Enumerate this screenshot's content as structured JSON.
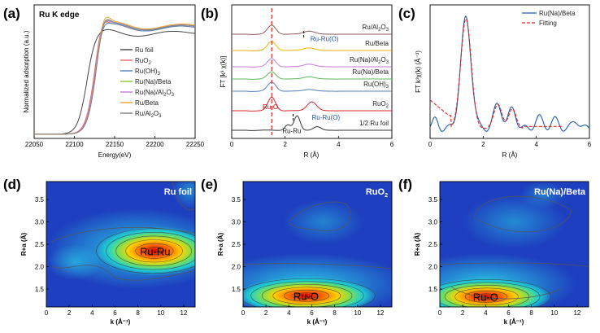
{
  "panels": [
    {
      "id": "a",
      "label": "(a)",
      "chart_data": {
        "type": "line",
        "title": "Ru K edge",
        "xlabel": "Energy(eV)",
        "ylabel": "Normalized adsorption (a.u.)",
        "xlim": [
          22050,
          22250
        ],
        "xticks": [
          22050,
          22100,
          22150,
          22200,
          22250
        ],
        "legend_position": "right",
        "series": [
          {
            "name": "Ru foil",
            "color": "#444444",
            "edge": 22115,
            "peak": 0.96,
            "post": 0.97
          },
          {
            "name": "RuO2",
            "color": "#e36c6c",
            "edge": 22124,
            "peak": 1.12,
            "post": 1.02
          },
          {
            "name": "Ru(OH)3",
            "color": "#4f81bd",
            "edge": 22125,
            "peak": 1.1,
            "post": 1.02
          },
          {
            "name": "Ru(Na)/Beta",
            "color": "#8cc63f",
            "edge": 22125,
            "peak": 1.14,
            "post": 1.03
          },
          {
            "name": "Ru(Na)/Al2O3",
            "color": "#c27bd2",
            "edge": 22125,
            "peak": 1.13,
            "post": 1.03
          },
          {
            "name": "Ru/Beta",
            "color": "#f0a030",
            "edge": 22126,
            "peak": 1.18,
            "post": 1.04
          },
          {
            "name": "Ru/Al2O3",
            "color": "#7f7f7f",
            "edge": 22126,
            "peak": 1.15,
            "post": 1.03
          }
        ],
        "legend": [
          {
            "main": "Ru foil",
            "sub": ""
          },
          {
            "main": "RuO",
            "sub": "2"
          },
          {
            "main": "Ru(OH)",
            "sub": "3"
          },
          {
            "main": "Ru(Na)/Beta",
            "sub": ""
          },
          {
            "main": "Ru(Na)/Al",
            "sub": "2",
            "tail": "O",
            "sub2": "3"
          },
          {
            "main": "Ru/Beta",
            "sub": ""
          },
          {
            "main": "Ru/Al",
            "sub": "2",
            "tail": "O",
            "sub2": "3"
          }
        ]
      }
    },
    {
      "id": "b",
      "label": "(b)",
      "chart_data": {
        "type": "line",
        "xlabel": "R (Å)",
        "ylabel": "FT [k³ χ(k)]",
        "xlim": [
          0,
          6
        ],
        "xticks": [
          0,
          2,
          4,
          6
        ],
        "dashed_lines": [
          1.5
        ],
        "dashed_color": "#d62728",
        "marker_lines": [
          {
            "x": 2.3
          },
          {
            "x": 2.7
          }
        ],
        "annotations": [
          {
            "text": "Ru-Ru(O)",
            "color": "#1f4e9a",
            "x": 2.95,
            "y_frac": 0.27
          },
          {
            "text": "Ru-O",
            "color": "#c00000",
            "x": 1.45,
            "y_frac": 0.78
          },
          {
            "text": "Ru-Ru(O)",
            "color": "#1f4e9a",
            "x": 3.0,
            "y_frac": 0.86
          },
          {
            "text": "Ru-Ru",
            "color": "#111111",
            "x": 2.25,
            "y_frac": 0.96
          }
        ],
        "series": [
          {
            "name": "Ru/Al2O3",
            "color": "#8c5a5a",
            "peaks": [
              [
                1.5,
                1.0,
                0.22
              ],
              [
                2.9,
                0.35,
                0.3
              ]
            ]
          },
          {
            "name": "Ru/Beta",
            "color": "#f0b400",
            "peaks": [
              [
                1.5,
                1.0,
                0.22
              ],
              [
                2.9,
                0.3,
                0.3
              ]
            ]
          },
          {
            "name": "Ru(Na)/Al2O3",
            "color": "#c27bd2",
            "peaks": [
              [
                1.5,
                0.9,
                0.22
              ],
              [
                2.9,
                0.3,
                0.3
              ]
            ]
          },
          {
            "name": "Ru(Na)/Beta",
            "color": "#5cb85c",
            "peaks": [
              [
                1.5,
                0.8,
                0.22
              ],
              [
                2.9,
                0.25,
                0.3
              ]
            ]
          },
          {
            "name": "Ru(OH)3",
            "color": "#4f81bd",
            "peaks": [
              [
                1.5,
                1.0,
                0.22
              ],
              [
                2.9,
                0.2,
                0.3
              ]
            ]
          },
          {
            "name": "RuO2",
            "color": "#d62728",
            "peaks": [
              [
                1.5,
                1.5,
                0.2
              ],
              [
                3.0,
                1.0,
                0.25
              ]
            ]
          },
          {
            "name": "1/2 Ru foil",
            "color": "#333333",
            "peaks": [
              [
                2.1,
                0.6,
                0.15
              ],
              [
                2.45,
                1.6,
                0.16
              ],
              [
                3.2,
                0.4,
                0.2
              ]
            ]
          }
        ],
        "labels": [
          {
            "main": "Ru/Al",
            "sub": "2",
            "tail": "O",
            "sub2": "3"
          },
          {
            "main": "Ru/Beta",
            "sub": ""
          },
          {
            "main": "Ru(Na)/Al",
            "sub": "2",
            "tail": "O",
            "sub2": "3"
          },
          {
            "main": "Ru(Na)/Beta",
            "sub": ""
          },
          {
            "main": "Ru(OH)",
            "sub": "3"
          },
          {
            "main": "RuO",
            "sub": "2"
          },
          {
            "main": "1/2 Ru foil",
            "sub": ""
          }
        ]
      }
    },
    {
      "id": "c",
      "label": "(c)",
      "chart_data": {
        "type": "line",
        "xlabel": "R (Å)",
        "ylabel": "FT k³χ(k) (Å⁻³)",
        "xlim": [
          0,
          6
        ],
        "xticks": [
          0,
          2,
          4,
          6
        ],
        "legend_position": "top-right",
        "series": [
          {
            "name": "Ru(Na)/Beta",
            "color": "#1f5fa8",
            "style": "solid"
          },
          {
            "name": "Fitting",
            "color": "#d62728",
            "style": "dashed"
          }
        ]
      }
    },
    {
      "id": "d",
      "label": "(d)",
      "chart_data": {
        "type": "heatmap",
        "title": "Ru foil",
        "xlabel": "k (Å⁻¹)",
        "ylabel": "R+a (Å)",
        "xlim": [
          0,
          13
        ],
        "ylim": [
          1.1,
          3.9
        ],
        "xticks": [
          0,
          2,
          4,
          6,
          8,
          10,
          12
        ],
        "yticks": [
          1.5,
          2.0,
          2.5,
          3.0,
          3.5
        ],
        "hotspot": {
          "text": "Ru-Ru",
          "k": 9.5,
          "R": 2.35
        }
      }
    },
    {
      "id": "e",
      "label": "(e)",
      "chart_data": {
        "type": "heatmap",
        "title": "RuO2",
        "title_main": "RuO",
        "title_sub": "2",
        "xlabel": "k (Å⁻¹)",
        "ylabel": "R+a (Å)",
        "xlim": [
          0,
          13
        ],
        "ylim": [
          1.1,
          3.9
        ],
        "xticks": [
          0,
          2,
          4,
          6,
          8,
          10,
          12
        ],
        "yticks": [
          1.5,
          2.0,
          2.5,
          3.0,
          3.5
        ],
        "hotspot": {
          "text": "Ru-O",
          "k": 5.5,
          "R": 1.35
        }
      }
    },
    {
      "id": "f",
      "label": "(f)",
      "chart_data": {
        "type": "heatmap",
        "title": "Ru(Na)/Beta",
        "xlabel": "k (Å⁻¹)",
        "ylabel": "R+a (Å)",
        "xlim": [
          0,
          13
        ],
        "ylim": [
          1.1,
          3.9
        ],
        "xticks": [
          0,
          2,
          4,
          6,
          8,
          10,
          12
        ],
        "yticks": [
          1.5,
          2.0,
          2.5,
          3.0,
          3.5
        ],
        "hotspot": {
          "text": "Ru-O",
          "k": 4.0,
          "R": 1.33
        }
      }
    }
  ]
}
